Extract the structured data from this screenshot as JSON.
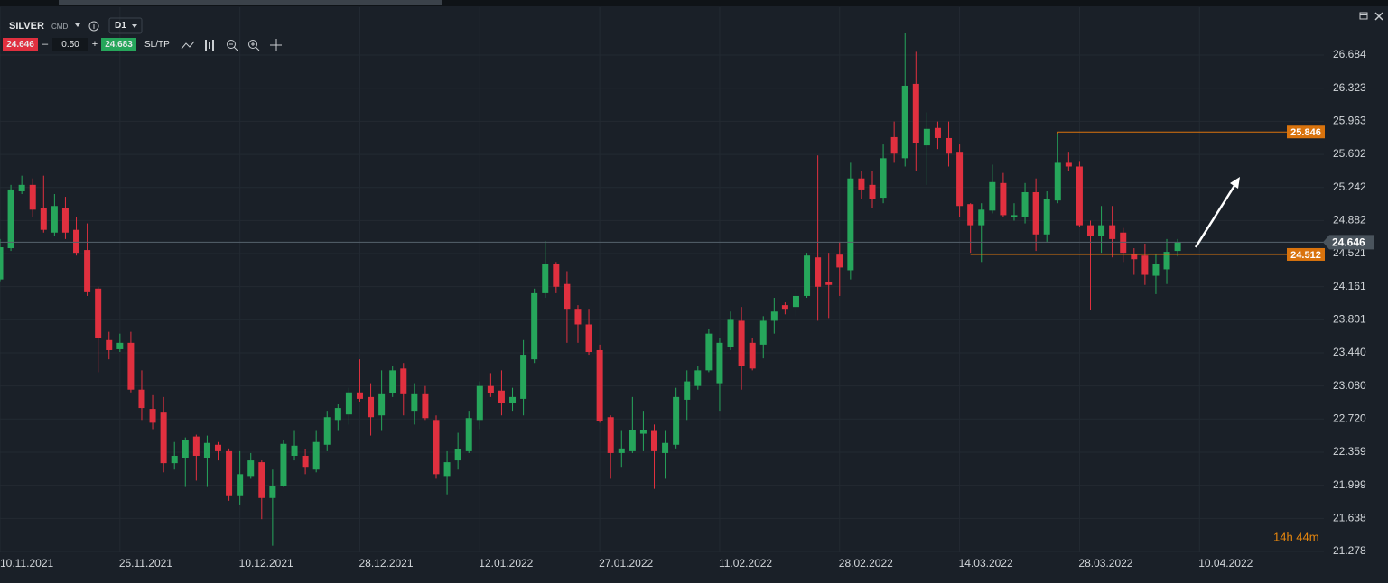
{
  "toolbar": {
    "symbol": "SILVER",
    "market": "CMD",
    "timeframe": "D1",
    "sell": "24.646",
    "minus": "–",
    "volume": "0.50",
    "plus": "+",
    "buy": "24.683",
    "sltp": "SL/TP"
  },
  "chart_data": {
    "type": "candlestick",
    "categories": [
      "10.11.2021",
      null,
      null,
      null,
      null,
      null,
      null,
      null,
      null,
      null,
      null,
      "25.11.2021",
      null,
      null,
      null,
      null,
      null,
      null,
      null,
      null,
      null,
      null,
      "10.12.2021",
      null,
      null,
      null,
      null,
      null,
      null,
      null,
      null,
      null,
      null,
      "28.12.2021",
      null,
      null,
      null,
      null,
      null,
      null,
      null,
      null,
      null,
      null,
      "12.01.2022",
      null,
      null,
      null,
      null,
      null,
      null,
      null,
      null,
      null,
      null,
      "27.01.2022",
      null,
      null,
      null,
      null,
      null,
      null,
      null,
      null,
      null,
      null,
      "11.02.2022",
      null,
      null,
      null,
      null,
      null,
      null,
      null,
      null,
      null,
      null,
      "28.02.2022",
      null,
      null,
      null,
      null,
      null,
      null,
      null,
      null,
      null,
      null,
      "14.03.2022",
      null,
      null,
      null,
      null,
      null,
      null,
      null,
      null,
      null,
      null,
      "28.03.2022",
      null,
      null,
      null,
      null,
      null,
      null,
      null,
      null,
      null,
      null,
      "10.04.2022"
    ],
    "open": [
      24.24,
      24.58,
      25.2,
      25.27,
      25.02,
      24.75,
      25.02,
      24.78,
      24.56,
      24.14,
      23.58,
      23.48,
      23.55,
      23.04,
      22.83,
      22.79,
      22.24,
      22.3,
      22.53,
      22.3,
      22.44,
      22.37,
      21.88,
      22.1,
      22.25,
      21.86,
      21.99,
      22.32,
      22.32,
      22.17,
      22.44,
      22.71,
      22.77,
      23.01,
      22.96,
      22.76,
      23.0,
      23.27,
      22.81,
      22.99,
      22.71,
      22.1,
      22.27,
      22.37,
      22.71,
      23.08,
      23.03,
      22.89,
      22.94,
      23.37,
      24.09,
      24.41,
      24.19,
      23.92,
      23.75,
      23.47,
      22.74,
      22.35,
      22.37,
      22.56,
      22.59,
      22.35,
      22.44,
      22.93,
      23.08,
      23.25,
      23.11,
      23.5,
      23.79,
      23.55,
      23.53,
      23.79,
      23.96,
      23.94,
      24.06,
      24.48,
      24.21,
      24.51,
      24.34,
      25.34,
      25.27,
      25.13,
      25.79,
      25.56,
      26.37,
      25.7,
      25.89,
      25.78,
      25.63,
      25.06,
      24.83,
      24.99,
      25.29,
      24.92,
      24.92,
      25.19,
      24.73,
      25.1,
      25.51,
      25.47,
      24.83,
      24.71,
      24.83,
      24.75,
      24.51,
      24.5,
      24.28,
      24.35,
      24.55,
      null,
      null
    ],
    "high": [
      24.68,
      25.27,
      25.37,
      25.34,
      25.37,
      25.17,
      25.14,
      24.92,
      24.85,
      24.16,
      23.67,
      23.65,
      23.67,
      23.25,
      22.98,
      22.96,
      22.47,
      22.52,
      22.55,
      22.54,
      22.47,
      22.4,
      22.37,
      22.35,
      22.27,
      22.17,
      22.49,
      22.59,
      22.39,
      22.59,
      22.81,
      22.88,
      23.06,
      23.37,
      23.11,
      23.25,
      23.3,
      23.33,
      23.11,
      23.08,
      22.76,
      22.37,
      22.57,
      22.81,
      23.13,
      23.22,
      23.25,
      23.06,
      23.58,
      24.14,
      24.66,
      24.43,
      24.33,
      23.96,
      23.92,
      23.53,
      22.76,
      22.59,
      22.96,
      22.81,
      22.66,
      22.59,
      23.06,
      23.25,
      23.3,
      23.7,
      23.6,
      23.89,
      23.94,
      23.6,
      23.84,
      24.04,
      23.99,
      24.14,
      24.53,
      25.59,
      24.53,
      24.65,
      25.51,
      25.42,
      25.42,
      25.71,
      25.96,
      26.92,
      26.72,
      26.06,
      25.96,
      25.96,
      25.71,
      25.07,
      25.07,
      25.49,
      25.4,
      25.07,
      25.29,
      25.34,
      25.2,
      25.83,
      25.63,
      25.53,
      24.88,
      25.04,
      25.04,
      24.8,
      24.58,
      24.63,
      24.51,
      24.68,
      24.68,
      null,
      null
    ],
    "low": [
      24.22,
      24.55,
      25.17,
      24.92,
      24.75,
      24.71,
      24.68,
      24.5,
      24.06,
      23.23,
      23.37,
      23.45,
      23.01,
      22.71,
      22.61,
      22.14,
      22.17,
      21.98,
      22.05,
      21.98,
      22.27,
      21.83,
      21.78,
      22.07,
      21.63,
      21.34,
      21.98,
      22.27,
      22.12,
      22.14,
      22.37,
      22.59,
      22.66,
      22.91,
      22.54,
      22.59,
      22.96,
      22.76,
      22.66,
      22.71,
      22.07,
      21.9,
      22.17,
      22.35,
      22.61,
      22.96,
      22.76,
      22.81,
      22.76,
      23.33,
      24.04,
      24.09,
      23.55,
      23.55,
      23.42,
      22.68,
      22.07,
      22.19,
      22.35,
      22.37,
      21.96,
      22.07,
      22.4,
      22.71,
      23.04,
      23.23,
      22.81,
      23.47,
      23.04,
      23.25,
      23.38,
      23.65,
      23.86,
      23.84,
      24.04,
      23.79,
      23.82,
      24.06,
      24.24,
      25.12,
      25.02,
      25.07,
      25.51,
      25.47,
      25.42,
      25.27,
      25.66,
      25.47,
      24.92,
      24.53,
      24.43,
      24.96,
      24.92,
      24.88,
      24.85,
      24.55,
      24.65,
      25.07,
      25.42,
      24.81,
      23.91,
      24.53,
      24.48,
      24.43,
      24.29,
      24.18,
      24.08,
      24.19,
      24.49,
      null,
      null
    ],
    "close": [
      24.59,
      25.22,
      25.27,
      25.0,
      24.78,
      25.04,
      24.75,
      24.53,
      24.11,
      23.6,
      23.47,
      23.55,
      23.04,
      22.84,
      22.68,
      22.24,
      22.32,
      22.49,
      22.32,
      22.46,
      22.37,
      21.88,
      22.12,
      22.27,
      21.86,
      21.99,
      22.45,
      22.43,
      22.19,
      22.47,
      22.74,
      22.84,
      23.01,
      22.94,
      22.74,
      22.99,
      23.25,
      22.99,
      22.99,
      22.73,
      22.12,
      22.25,
      22.39,
      22.73,
      23.08,
      23.0,
      22.89,
      22.96,
      23.42,
      24.09,
      24.41,
      24.16,
      23.92,
      23.75,
      23.45,
      22.7,
      22.35,
      22.4,
      22.6,
      22.6,
      22.37,
      22.46,
      22.96,
      23.13,
      23.25,
      23.65,
      23.55,
      23.8,
      23.3,
      23.27,
      23.79,
      23.89,
      23.92,
      24.06,
      24.5,
      24.16,
      24.18,
      24.37,
      25.34,
      25.22,
      25.12,
      25.56,
      25.61,
      26.35,
      25.73,
      25.88,
      25.78,
      25.61,
      25.04,
      24.83,
      25.0,
      25.3,
      24.94,
      24.94,
      25.19,
      24.73,
      25.12,
      25.51,
      25.47,
      24.83,
      24.71,
      24.83,
      24.68,
      24.53,
      24.46,
      24.29,
      24.41,
      24.54,
      24.646,
      null,
      null
    ],
    "up_color": "#26a65b",
    "down_color": "#e0303f",
    "ylim": [
      20.99,
      27.19
    ],
    "yticks": [
      {
        "value": 26.684,
        "label": "26.684"
      },
      {
        "value": 26.323,
        "label": "26.323"
      },
      {
        "value": 25.963,
        "label": "25.963"
      },
      {
        "value": 25.602,
        "label": "25.602"
      },
      {
        "value": 25.242,
        "label": "25.242"
      },
      {
        "value": 24.882,
        "label": "24.882"
      },
      {
        "value": 24.521,
        "label": "24.521"
      },
      {
        "value": 24.161,
        "label": "24.161"
      },
      {
        "value": 23.801,
        "label": "23.801"
      },
      {
        "value": 23.44,
        "label": "23.440"
      },
      {
        "value": 23.08,
        "label": "23.080"
      },
      {
        "value": 22.72,
        "label": "22.720"
      },
      {
        "value": 22.359,
        "label": "22.359"
      },
      {
        "value": 21.999,
        "label": "21.999"
      },
      {
        "value": 21.638,
        "label": "21.638"
      },
      {
        "value": 21.278,
        "label": "21.278"
      }
    ],
    "grid": true,
    "levels": [
      25.846,
      24.512
    ],
    "level_color": "#d9730d",
    "current_price": 24.646,
    "countdown": "14h 44m"
  }
}
